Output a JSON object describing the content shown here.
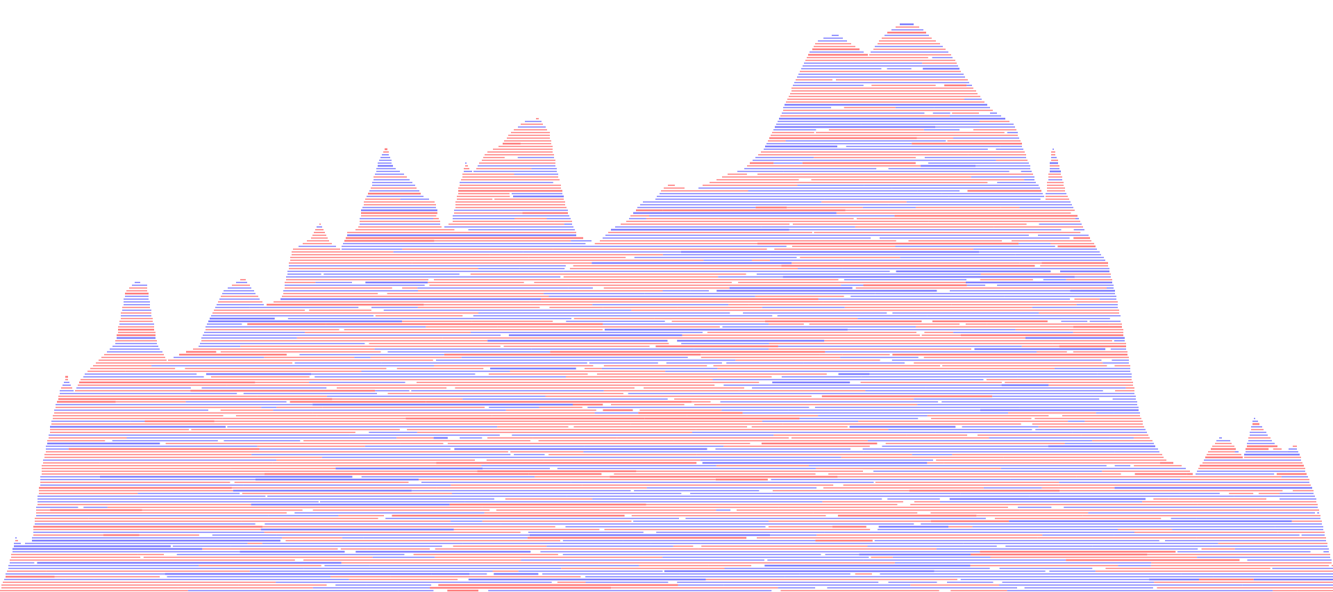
{
  "artwork": {
    "kind": "horizontal-line-mountain-silhouette",
    "colors": {
      "background": "#ffffff",
      "red": "#ff7a7a",
      "blue": "#7b7bff"
    }
  }
}
